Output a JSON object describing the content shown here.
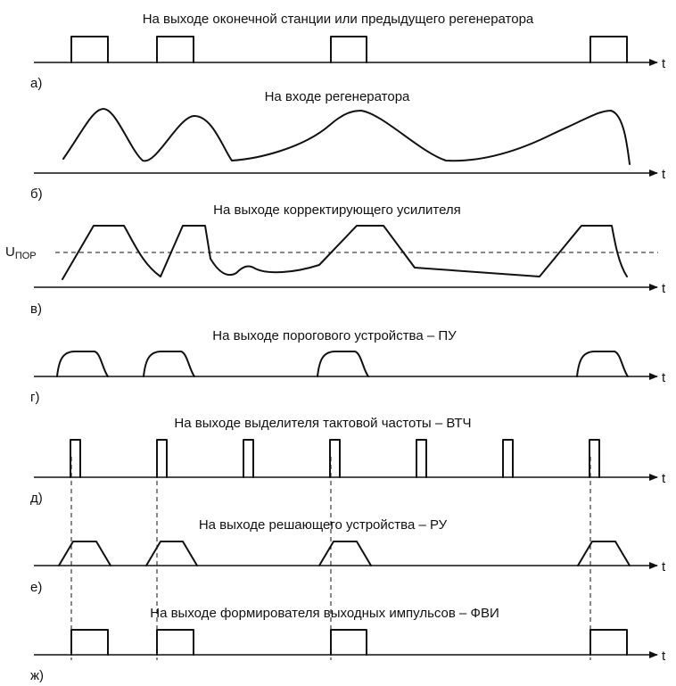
{
  "panels": [
    {
      "id": "a",
      "label": "а)",
      "title": "На выходе оконечной станции или предыдущего регенератора",
      "axis_label": "t"
    },
    {
      "id": "b",
      "label": "б)",
      "title": "На входе регенератора",
      "axis_label": "t"
    },
    {
      "id": "v",
      "label": "в)",
      "title": "На выходе корректирующего усилителя",
      "axis_label": "t",
      "threshold_label": "U",
      "threshold_sub": "ПОР"
    },
    {
      "id": "g",
      "label": "г)",
      "title": "На выходе порогового устройства – ПУ",
      "axis_label": "t"
    },
    {
      "id": "d",
      "label": "д)",
      "title": "На выходе выделителя тактовой частоты – ВТЧ",
      "axis_label": "t"
    },
    {
      "id": "e",
      "label": "е)",
      "title": "На выходе решающего устройства – РУ",
      "axis_label": "t"
    },
    {
      "id": "zh",
      "label": "ж)",
      "title": "На выходе формирователя выходных импульсов – ФВИ",
      "axis_label": "t"
    }
  ]
}
